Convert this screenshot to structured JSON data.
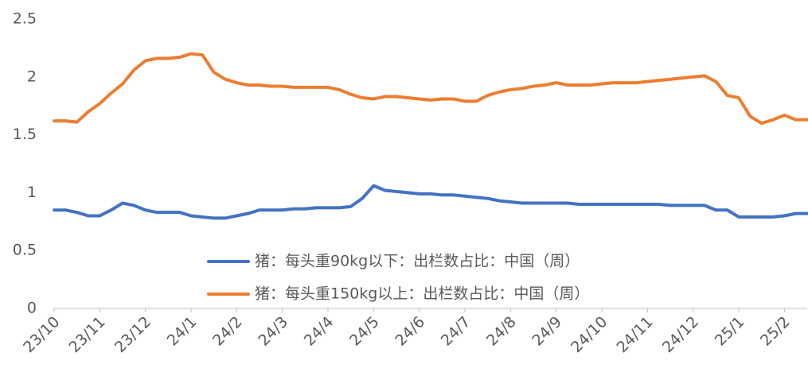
{
  "chart_data": {
    "type": "line",
    "categories": [
      "23/10",
      null,
      null,
      null,
      "23/11",
      null,
      null,
      null,
      "23/12",
      null,
      null,
      null,
      "24/1",
      null,
      null,
      null,
      "24/2",
      null,
      null,
      null,
      "24/3",
      null,
      null,
      null,
      "24/4",
      null,
      null,
      null,
      "24/5",
      null,
      null,
      null,
      "24/6",
      null,
      null,
      null,
      "24/7",
      null,
      null,
      null,
      "24/8",
      null,
      null,
      null,
      "24/9",
      null,
      null,
      null,
      "24/10",
      null,
      null,
      null,
      "24/11",
      null,
      null,
      null,
      "24/12",
      null,
      null,
      null,
      "25/1",
      null,
      null,
      null,
      "25/2",
      null,
      null
    ],
    "series": [
      {
        "name": "猪：每头重90kg以下：出栏数占比：中国（周）",
        "color": "#4472c4",
        "values": [
          0.85,
          0.85,
          0.83,
          0.8,
          0.8,
          0.85,
          0.91,
          0.89,
          0.85,
          0.83,
          0.83,
          0.83,
          0.8,
          0.79,
          0.78,
          0.78,
          0.8,
          0.82,
          0.85,
          0.85,
          0.85,
          0.86,
          0.86,
          0.87,
          0.87,
          0.87,
          0.88,
          0.95,
          1.06,
          1.02,
          1.01,
          1.0,
          0.99,
          0.99,
          0.98,
          0.98,
          0.97,
          0.96,
          0.95,
          0.93,
          0.92,
          0.91,
          0.91,
          0.91,
          0.91,
          0.91,
          0.9,
          0.9,
          0.9,
          0.9,
          0.9,
          0.9,
          0.9,
          0.9,
          0.89,
          0.89,
          0.89,
          0.89,
          0.85,
          0.85,
          0.79,
          0.79,
          0.79,
          0.79,
          0.8,
          0.82,
          0.82
        ]
      },
      {
        "name": "猪：每头重150kg以上：出栏数占比：中国（周）",
        "color": "#ed7d31",
        "values": [
          1.62,
          1.62,
          1.61,
          1.7,
          1.77,
          1.86,
          1.94,
          2.06,
          2.14,
          2.16,
          2.16,
          2.17,
          2.2,
          2.19,
          2.04,
          1.98,
          1.95,
          1.93,
          1.93,
          1.92,
          1.92,
          1.91,
          1.91,
          1.91,
          1.91,
          1.89,
          1.85,
          1.82,
          1.81,
          1.83,
          1.83,
          1.82,
          1.81,
          1.8,
          1.81,
          1.81,
          1.79,
          1.79,
          1.84,
          1.87,
          1.89,
          1.9,
          1.92,
          1.93,
          1.95,
          1.93,
          1.93,
          1.93,
          1.94,
          1.95,
          1.95,
          1.95,
          1.96,
          1.97,
          1.98,
          1.99,
          2.0,
          2.01,
          1.96,
          1.84,
          1.82,
          1.66,
          1.6,
          1.63,
          1.67,
          1.63,
          1.63
        ]
      }
    ],
    "ylim": [
      0,
      2.5
    ],
    "yticks": [
      0,
      0.5,
      1,
      1.5,
      2,
      2.5
    ],
    "grid": false,
    "legend": "bottom"
  }
}
